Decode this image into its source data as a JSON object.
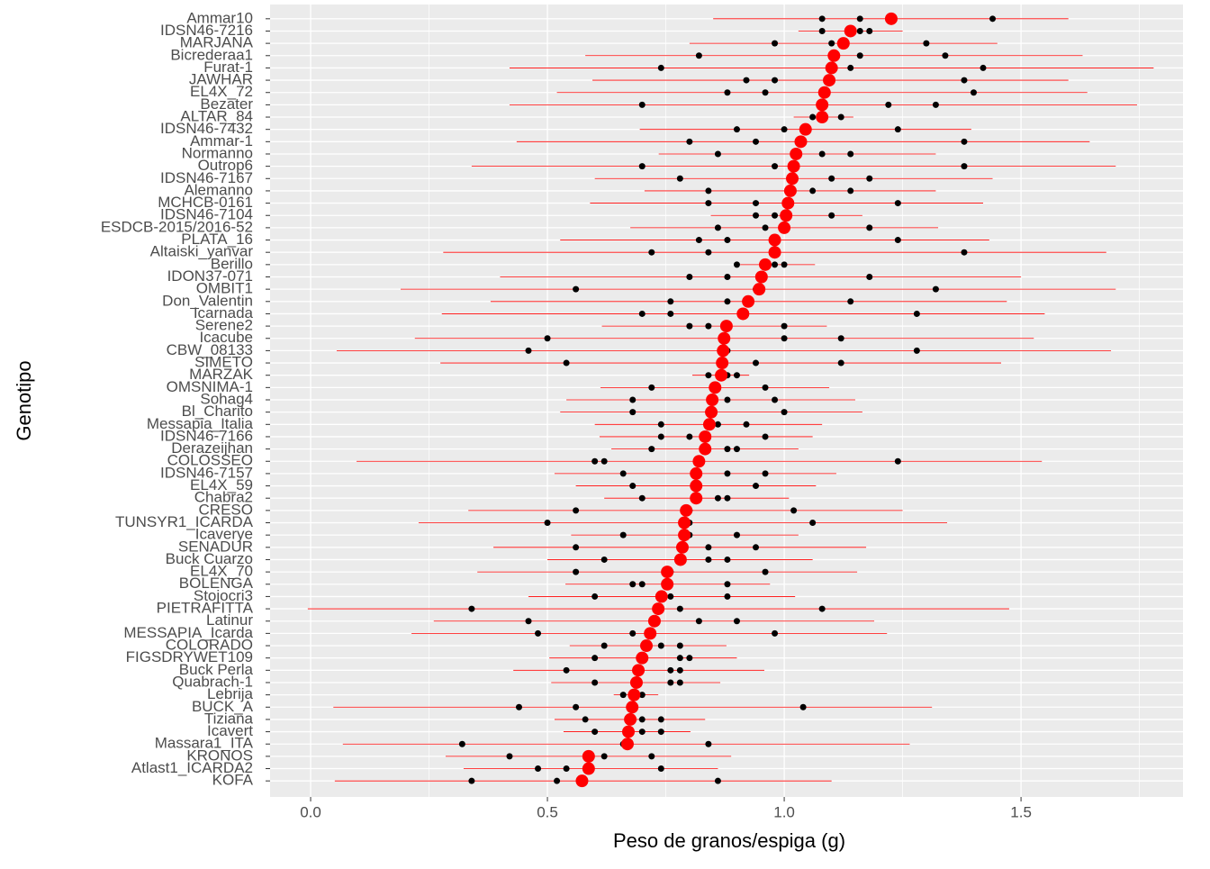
{
  "chart_data": {
    "type": "dot_errorbar",
    "x_label": "Peso de granos/espiga (g)",
    "y_label": "Genotipo",
    "categories": [
      "Ammar10",
      "IDSN46-7216",
      "MARJANA",
      "Bicrederaa1",
      "Furat-1",
      "JAWHAR",
      "EL4X_72",
      "Bezater",
      "ALTAR_84",
      "IDSN46-7432",
      "Ammar-1",
      "Normanno",
      "Outrop6",
      "IDSN46-7167",
      "Alemanno",
      "MCHCB-0161",
      "IDSN46-7104",
      "ESDCB-2015/2016-52",
      "PLATA_16",
      "Altaiski_yanvar",
      "Berillo",
      "IDON37-071",
      "OMBIT1",
      "Don_Valentin",
      "Icarnada",
      "Serene2",
      "Icacube",
      "CBW_08133",
      "SIMETO",
      "MARZAK",
      "OMSNIMA-1",
      "Sohag4",
      "Bl_Charito",
      "Messapia_Italia",
      "IDSN46-7166",
      "Derazeijhan",
      "COLOSSEO",
      "IDSN46-7157",
      "EL4X_59",
      "Chabra2",
      "CRESO",
      "TUNSYR1_ICARDA",
      "Icaverye",
      "SENADUR",
      "Buck Cuarzo",
      "EL4X_70",
      "BOLENGA",
      "Stojocri3",
      "PIETRAFITTA",
      "Latinur",
      "MESSAPIA_Icarda",
      "COLORADO",
      "FIGSDRYWET109",
      "Buck Perla",
      "Quabrach-1",
      "Lebrija",
      "BUCK_A",
      "Tiziana",
      "Icavert",
      "Massara1_ITA",
      "KRONOS",
      "Atlast1_ICARDA2",
      "KOFA"
    ],
    "means": [
      1.226,
      1.14,
      1.125,
      1.105,
      1.1,
      1.095,
      1.085,
      1.08,
      1.08,
      1.045,
      1.035,
      1.025,
      1.02,
      1.017,
      1.013,
      1.008,
      1.004,
      1.0,
      0.98,
      0.98,
      0.96,
      0.952,
      0.947,
      0.924,
      0.913,
      0.878,
      0.873,
      0.871,
      0.869,
      0.867,
      0.854,
      0.848,
      0.846,
      0.842,
      0.833,
      0.833,
      0.82,
      0.814,
      0.814,
      0.814,
      0.793,
      0.789,
      0.789,
      0.785,
      0.781,
      0.753,
      0.753,
      0.741,
      0.734,
      0.726,
      0.717,
      0.709,
      0.7,
      0.692,
      0.688,
      0.683,
      0.679,
      0.675,
      0.671,
      0.669,
      0.587,
      0.587,
      0.573
    ],
    "lower": [
      0.85,
      1.03,
      0.8,
      0.58,
      0.42,
      0.595,
      0.52,
      0.42,
      1.02,
      0.695,
      0.435,
      0.735,
      0.34,
      0.6,
      0.705,
      0.59,
      0.845,
      0.675,
      0.527,
      0.28,
      0.907,
      0.4,
      0.19,
      0.38,
      0.277,
      0.615,
      0.22,
      0.055,
      0.274,
      0.806,
      0.612,
      0.54,
      0.527,
      0.6,
      0.61,
      0.635,
      0.097,
      0.515,
      0.56,
      0.62,
      0.333,
      0.228,
      0.55,
      0.386,
      0.5,
      0.352,
      0.538,
      0.46,
      -0.006,
      0.26,
      0.213,
      0.547,
      0.504,
      0.428,
      0.508,
      0.64,
      0.048,
      0.515,
      0.534,
      0.068,
      0.285,
      0.323,
      0.051
    ],
    "upper": [
      1.6,
      1.25,
      1.45,
      1.63,
      1.78,
      1.6,
      1.64,
      1.745,
      1.146,
      1.395,
      1.645,
      1.32,
      1.7,
      1.44,
      1.32,
      1.42,
      1.165,
      1.325,
      1.433,
      1.68,
      1.065,
      1.5,
      1.7,
      1.47,
      1.55,
      1.09,
      1.527,
      1.69,
      1.458,
      0.926,
      1.095,
      1.15,
      1.165,
      1.08,
      1.06,
      1.03,
      1.544,
      1.11,
      1.067,
      1.01,
      1.25,
      1.344,
      1.03,
      1.173,
      1.06,
      1.154,
      0.97,
      1.023,
      1.475,
      1.19,
      1.217,
      0.878,
      0.9,
      0.958,
      0.865,
      0.734,
      1.312,
      0.833,
      0.802,
      1.265,
      0.888,
      0.86,
      1.1
    ],
    "replicates": [
      [
        1.08,
        1.16,
        1.44
      ],
      [
        1.08,
        1.16,
        1.18
      ],
      [
        0.98,
        1.1,
        1.3
      ],
      [
        0.82,
        1.16,
        1.34
      ],
      [
        0.74,
        1.14,
        1.42
      ],
      [
        0.92,
        0.98,
        1.38
      ],
      [
        0.88,
        0.96,
        1.4
      ],
      [
        0.7,
        1.22,
        1.32
      ],
      [
        1.06,
        1.08,
        1.12
      ],
      [
        0.9,
        1.0,
        1.24
      ],
      [
        0.8,
        0.94,
        1.38
      ],
      [
        0.86,
        1.08,
        1.14
      ],
      [
        0.7,
        0.98,
        1.38
      ],
      [
        0.78,
        1.1,
        1.18
      ],
      [
        0.84,
        1.06,
        1.14
      ],
      [
        0.84,
        0.94,
        1.24
      ],
      [
        0.94,
        0.98,
        1.1
      ],
      [
        0.86,
        0.96,
        1.18
      ],
      [
        0.82,
        0.88,
        1.24
      ],
      [
        0.72,
        0.84,
        1.38
      ],
      [
        0.9,
        0.98,
        1.0
      ],
      [
        0.8,
        0.88,
        1.18
      ],
      [
        0.56,
        0.94,
        1.32
      ],
      [
        0.76,
        0.88,
        1.14
      ],
      [
        0.7,
        0.76,
        1.28
      ],
      [
        0.8,
        0.84,
        1.0
      ],
      [
        0.5,
        1.0,
        1.12
      ],
      [
        0.46,
        0.88,
        1.28
      ],
      [
        0.54,
        0.94,
        1.12
      ],
      [
        0.84,
        0.88,
        0.9
      ],
      [
        0.72,
        0.86,
        0.96
      ],
      [
        0.68,
        0.88,
        0.98
      ],
      [
        0.68,
        0.84,
        1.0
      ],
      [
        0.74,
        0.86,
        0.92
      ],
      [
        0.74,
        0.8,
        0.96
      ],
      [
        0.72,
        0.88,
        0.9
      ],
      [
        0.6,
        0.62,
        1.24
      ],
      [
        0.66,
        0.88,
        0.96
      ],
      [
        0.68,
        0.82,
        0.94
      ],
      [
        0.7,
        0.86,
        0.88
      ],
      [
        0.56,
        0.8,
        1.02
      ],
      [
        0.5,
        0.8,
        1.06
      ],
      [
        0.66,
        0.8,
        0.9
      ],
      [
        0.56,
        0.84,
        0.94
      ],
      [
        0.62,
        0.84,
        0.88
      ],
      [
        0.56,
        0.76,
        0.96
      ],
      [
        0.68,
        0.7,
        0.88
      ],
      [
        0.6,
        0.76,
        0.88
      ],
      [
        0.34,
        0.78,
        1.08
      ],
      [
        0.46,
        0.82,
        0.9
      ],
      [
        0.48,
        0.68,
        0.98
      ],
      [
        0.62,
        0.74,
        0.78
      ],
      [
        0.6,
        0.78,
        0.8
      ],
      [
        0.54,
        0.76,
        0.78
      ],
      [
        0.6,
        0.76,
        0.78
      ],
      [
        0.66,
        0.69,
        0.7
      ],
      [
        0.44,
        0.56,
        1.04
      ],
      [
        0.58,
        0.7,
        0.74
      ],
      [
        0.6,
        0.7,
        0.74
      ],
      [
        0.32,
        0.66,
        0.84
      ],
      [
        0.42,
        0.62,
        0.72
      ],
      [
        0.48,
        0.54,
        0.74
      ],
      [
        0.34,
        0.52,
        0.86
      ]
    ],
    "mean_color": "#ff0000",
    "point_color": "#000000",
    "bar_color": "#ff0000",
    "xlim": [
      -0.0856,
      1.842
    ],
    "xticks": [
      {
        "value": 0,
        "label": "0.0"
      },
      {
        "value": 0.5,
        "label": "0.5"
      },
      {
        "value": 1,
        "label": "1.0"
      },
      {
        "value": 1.5,
        "label": "1.5"
      }
    ],
    "grid": true
  }
}
